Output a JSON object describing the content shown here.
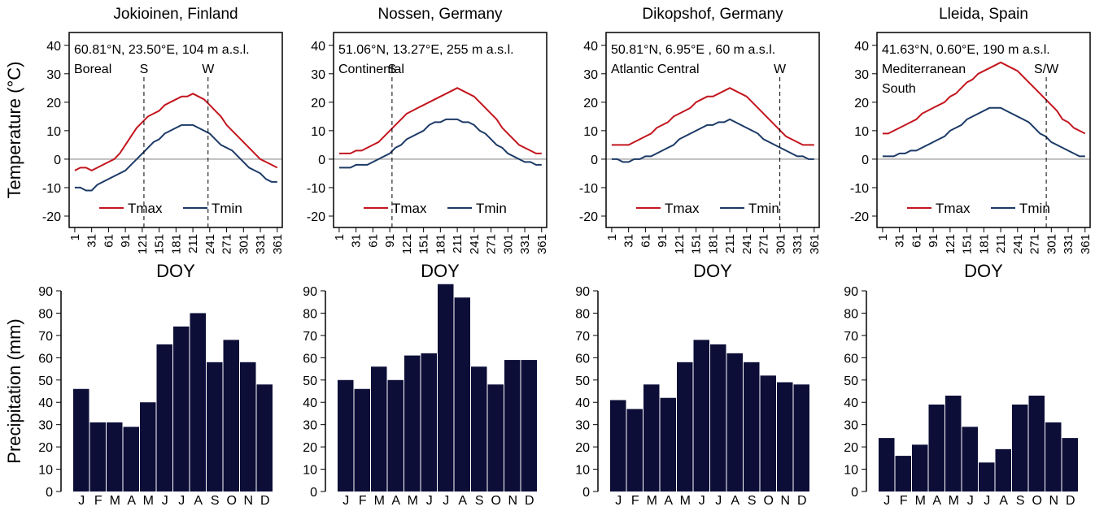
{
  "chart_data": [
    {
      "type": "line",
      "title": "Jokioinen, Finland",
      "annotations": [
        "60.81°N, 23.50°E, 104 m a.s.l.",
        "Boreal"
      ],
      "ylabel": "Temperature (°C)",
      "xlabel": "DOY",
      "x": [
        1,
        11,
        21,
        31,
        41,
        51,
        61,
        71,
        81,
        91,
        101,
        111,
        121,
        131,
        141,
        151,
        161,
        171,
        181,
        191,
        201,
        211,
        221,
        231,
        241,
        251,
        261,
        271,
        281,
        291,
        301,
        311,
        321,
        331,
        341,
        351,
        361
      ],
      "series": [
        {
          "name": "Tmax",
          "color": "#c3161f",
          "values": [
            -4,
            -3,
            -3,
            -4,
            -3,
            -2,
            -1,
            0,
            2,
            5,
            8,
            11,
            13,
            15,
            16,
            17,
            19,
            20,
            21,
            22,
            22,
            23,
            22,
            21,
            19,
            17,
            15,
            12,
            10,
            8,
            6,
            4,
            2,
            0,
            -1,
            -2,
            -3
          ]
        },
        {
          "name": "Tmin",
          "color": "#1c3a66",
          "values": [
            -10,
            -10,
            -11,
            -11,
            -9,
            -8,
            -7,
            -6,
            -5,
            -4,
            -2,
            0,
            2,
            4,
            6,
            7,
            9,
            10,
            11,
            12,
            12,
            12,
            11,
            10,
            9,
            7,
            5,
            4,
            3,
            1,
            -1,
            -3,
            -4,
            -5,
            -7,
            -8,
            -8
          ]
        }
      ],
      "vlines": [
        {
          "x": 124,
          "label": "S"
        },
        {
          "x": 238,
          "label": "W"
        }
      ],
      "hline": 0,
      "xlim": [
        -9,
        370
      ],
      "xticks": [
        1,
        31,
        61,
        91,
        121,
        151,
        181,
        211,
        241,
        271,
        301,
        331,
        361
      ],
      "ylim": [
        -24,
        44.5
      ],
      "yticks": [
        -20,
        -10,
        0,
        10,
        20,
        30,
        40
      ]
    },
    {
      "type": "line",
      "title": "Nossen, Germany",
      "annotations": [
        "51.06°N, 13.27°E, 255 m a.s.l.",
        "Continental"
      ],
      "xlabel": "DOY",
      "x": [
        1,
        11,
        21,
        31,
        41,
        51,
        61,
        71,
        81,
        91,
        101,
        111,
        121,
        131,
        141,
        151,
        161,
        171,
        181,
        191,
        201,
        211,
        221,
        231,
        241,
        251,
        261,
        271,
        281,
        291,
        301,
        311,
        321,
        331,
        341,
        351,
        361
      ],
      "series": [
        {
          "name": "Tmax",
          "color": "#c3161f",
          "values": [
            2,
            2,
            2,
            3,
            3,
            4,
            5,
            6,
            8,
            10,
            12,
            14,
            16,
            17,
            18,
            19,
            20,
            21,
            22,
            23,
            24,
            25,
            24,
            23,
            22,
            20,
            18,
            16,
            14,
            11,
            9,
            7,
            5,
            4,
            3,
            2,
            2
          ]
        },
        {
          "name": "Tmin",
          "color": "#1c3a66",
          "values": [
            -3,
            -3,
            -3,
            -2,
            -2,
            -2,
            -1,
            0,
            1,
            2,
            4,
            5,
            7,
            8,
            9,
            10,
            12,
            13,
            13,
            14,
            14,
            14,
            13,
            13,
            12,
            10,
            9,
            7,
            5,
            4,
            2,
            1,
            0,
            -1,
            -1,
            -2,
            -2
          ]
        }
      ],
      "vlines": [
        {
          "x": 95,
          "label": "S"
        }
      ],
      "hline": 0,
      "xlim": [
        -9,
        370
      ],
      "xticks": [
        1,
        31,
        61,
        91,
        121,
        151,
        181,
        211,
        241,
        271,
        301,
        331,
        361
      ],
      "ylim": [
        -24,
        44.5
      ],
      "yticks": [
        -20,
        -10,
        0,
        10,
        20,
        30,
        40
      ]
    },
    {
      "type": "line",
      "title": "Dikopshof, Germany",
      "annotations": [
        "50.81°N, 6.95°E , 60 m a.s.l.",
        "Atlantic Central"
      ],
      "xlabel": "DOY",
      "x": [
        1,
        11,
        21,
        31,
        41,
        51,
        61,
        71,
        81,
        91,
        101,
        111,
        121,
        131,
        141,
        151,
        161,
        171,
        181,
        191,
        201,
        211,
        221,
        231,
        241,
        251,
        261,
        271,
        281,
        291,
        301,
        311,
        321,
        331,
        341,
        351,
        361
      ],
      "series": [
        {
          "name": "Tmax",
          "color": "#c3161f",
          "values": [
            5,
            5,
            5,
            5,
            6,
            7,
            8,
            9,
            11,
            12,
            13,
            15,
            16,
            17,
            18,
            20,
            21,
            22,
            22,
            23,
            24,
            25,
            24,
            23,
            22,
            20,
            18,
            16,
            14,
            12,
            10,
            8,
            7,
            6,
            5,
            5,
            5
          ]
        },
        {
          "name": "Tmin",
          "color": "#1c3a66",
          "values": [
            0,
            0,
            -1,
            -1,
            0,
            0,
            1,
            1,
            2,
            3,
            4,
            5,
            7,
            8,
            9,
            10,
            11,
            12,
            12,
            13,
            13,
            14,
            13,
            12,
            11,
            10,
            9,
            7,
            6,
            5,
            4,
            3,
            2,
            1,
            1,
            0,
            0
          ]
        }
      ],
      "vlines": [
        {
          "x": 300,
          "label": "W"
        }
      ],
      "hline": 0,
      "xlim": [
        -9,
        370
      ],
      "xticks": [
        1,
        31,
        61,
        91,
        121,
        151,
        181,
        211,
        241,
        271,
        301,
        331,
        361
      ],
      "ylim": [
        -24,
        44.5
      ],
      "yticks": [
        -20,
        -10,
        0,
        10,
        20,
        30,
        40
      ]
    },
    {
      "type": "line",
      "title": "Lleida, Spain",
      "annotations": [
        "41.63°N, 0.60°E, 190 m a.s.l.",
        "Mediterranean",
        "South"
      ],
      "xlabel": "DOY",
      "x": [
        1,
        11,
        21,
        31,
        41,
        51,
        61,
        71,
        81,
        91,
        101,
        111,
        121,
        131,
        141,
        151,
        161,
        171,
        181,
        191,
        201,
        211,
        221,
        231,
        241,
        251,
        261,
        271,
        281,
        291,
        301,
        311,
        321,
        331,
        341,
        351,
        361
      ],
      "series": [
        {
          "name": "Tmax",
          "color": "#c3161f",
          "values": [
            9,
            9,
            10,
            11,
            12,
            13,
            14,
            16,
            17,
            18,
            19,
            20,
            22,
            23,
            25,
            27,
            28,
            30,
            31,
            32,
            33,
            34,
            33,
            32,
            31,
            29,
            27,
            25,
            23,
            21,
            19,
            17,
            14,
            13,
            11,
            10,
            9
          ]
        },
        {
          "name": "Tmin",
          "color": "#1c3a66",
          "values": [
            1,
            1,
            1,
            2,
            2,
            3,
            3,
            4,
            5,
            6,
            7,
            8,
            10,
            11,
            12,
            14,
            15,
            16,
            17,
            18,
            18,
            18,
            17,
            16,
            15,
            14,
            13,
            11,
            9,
            8,
            6,
            5,
            4,
            3,
            2,
            1,
            1
          ]
        }
      ],
      "vlines": [
        {
          "x": 292,
          "label": "S/W"
        }
      ],
      "hline": 0,
      "xlim": [
        -9,
        370
      ],
      "xticks": [
        1,
        31,
        61,
        91,
        121,
        151,
        181,
        211,
        241,
        271,
        301,
        331,
        361
      ],
      "ylim": [
        -24,
        44.5
      ],
      "yticks": [
        -20,
        -10,
        0,
        10,
        20,
        30,
        40
      ]
    },
    {
      "type": "bar",
      "ylabel": "Precipitation (mm)",
      "categories": [
        "J",
        "F",
        "M",
        "A",
        "M",
        "J",
        "J",
        "A",
        "S",
        "O",
        "N",
        "D"
      ],
      "values": [
        46,
        31,
        31,
        29,
        40,
        66,
        74,
        80,
        58,
        68,
        58,
        48
      ],
      "color": "#0c0e38",
      "ylim": [
        0,
        90
      ],
      "yticks": [
        0,
        10,
        20,
        30,
        40,
        50,
        60,
        70,
        80,
        90
      ]
    },
    {
      "type": "bar",
      "categories": [
        "J",
        "F",
        "M",
        "A",
        "M",
        "J",
        "J",
        "A",
        "S",
        "O",
        "N",
        "D"
      ],
      "values": [
        50,
        46,
        56,
        50,
        61,
        62,
        93,
        87,
        56,
        48,
        59,
        59
      ],
      "color": "#0c0e38",
      "ylim": [
        0,
        90
      ],
      "yticks": [
        0,
        10,
        20,
        30,
        40,
        50,
        60,
        70,
        80,
        90
      ]
    },
    {
      "type": "bar",
      "categories": [
        "J",
        "F",
        "M",
        "A",
        "M",
        "J",
        "J",
        "A",
        "S",
        "O",
        "N",
        "D"
      ],
      "values": [
        41,
        37,
        48,
        42,
        58,
        68,
        66,
        62,
        58,
        52,
        49,
        48
      ],
      "color": "#0c0e38",
      "ylim": [
        0,
        90
      ],
      "yticks": [
        0,
        10,
        20,
        30,
        40,
        50,
        60,
        70,
        80,
        90
      ]
    },
    {
      "type": "bar",
      "categories": [
        "J",
        "F",
        "M",
        "A",
        "M",
        "J",
        "J",
        "A",
        "S",
        "O",
        "N",
        "D"
      ],
      "values": [
        24,
        16,
        21,
        39,
        43,
        29,
        13,
        19,
        39,
        43,
        31,
        24
      ],
      "color": "#0c0e38",
      "ylim": [
        0,
        90
      ],
      "yticks": [
        0,
        10,
        20,
        30,
        40,
        50,
        60,
        70,
        80,
        90
      ]
    }
  ]
}
